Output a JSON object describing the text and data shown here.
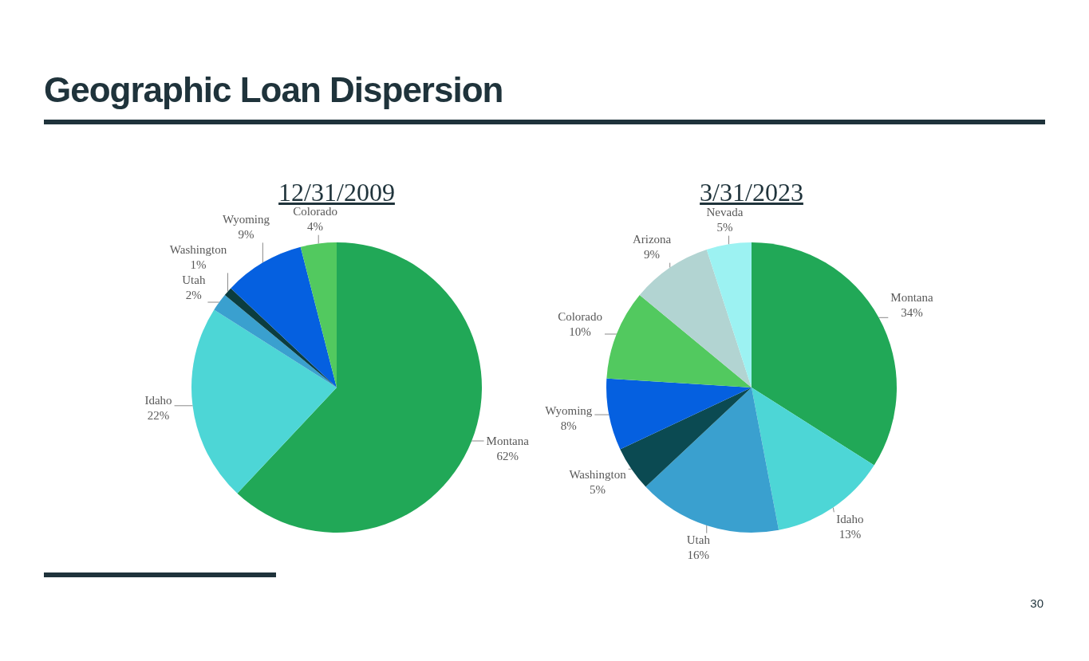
{
  "chart_data": [
    {
      "type": "other",
      "title": "Geographic Loan Dispersion",
      "annotations": [
        "30"
      ]
    },
    {
      "type": "pie",
      "title": "12/31/2009",
      "categories": [
        "Montana",
        "Idaho",
        "Utah",
        "Washington",
        "Wyoming",
        "Colorado"
      ],
      "values": [
        62,
        22,
        2,
        1,
        9,
        4
      ],
      "colors": [
        "#21a857",
        "#4dd6d6",
        "#3aa0cf",
        "#0b3d40",
        "#0560e0",
        "#52c95f"
      ],
      "value_labels": [
        "62%",
        "22%",
        "2%",
        "1%",
        "9%",
        "4%"
      ]
    },
    {
      "type": "pie",
      "title": "3/31/2023",
      "categories": [
        "Montana",
        "Idaho",
        "Utah",
        "Washington",
        "Wyoming",
        "Colorado",
        "Arizona",
        "Nevada"
      ],
      "values": [
        34,
        13,
        16,
        5,
        8,
        10,
        9,
        5
      ],
      "colors": [
        "#21a857",
        "#4dd6d6",
        "#3aa0cf",
        "#0b4a52",
        "#0560e0",
        "#52c95f",
        "#b2d4d2",
        "#9cf2f2"
      ],
      "value_labels": [
        "34%",
        "13%",
        "16%",
        "5%",
        "8%",
        "10%",
        "9%",
        "5%"
      ]
    }
  ]
}
